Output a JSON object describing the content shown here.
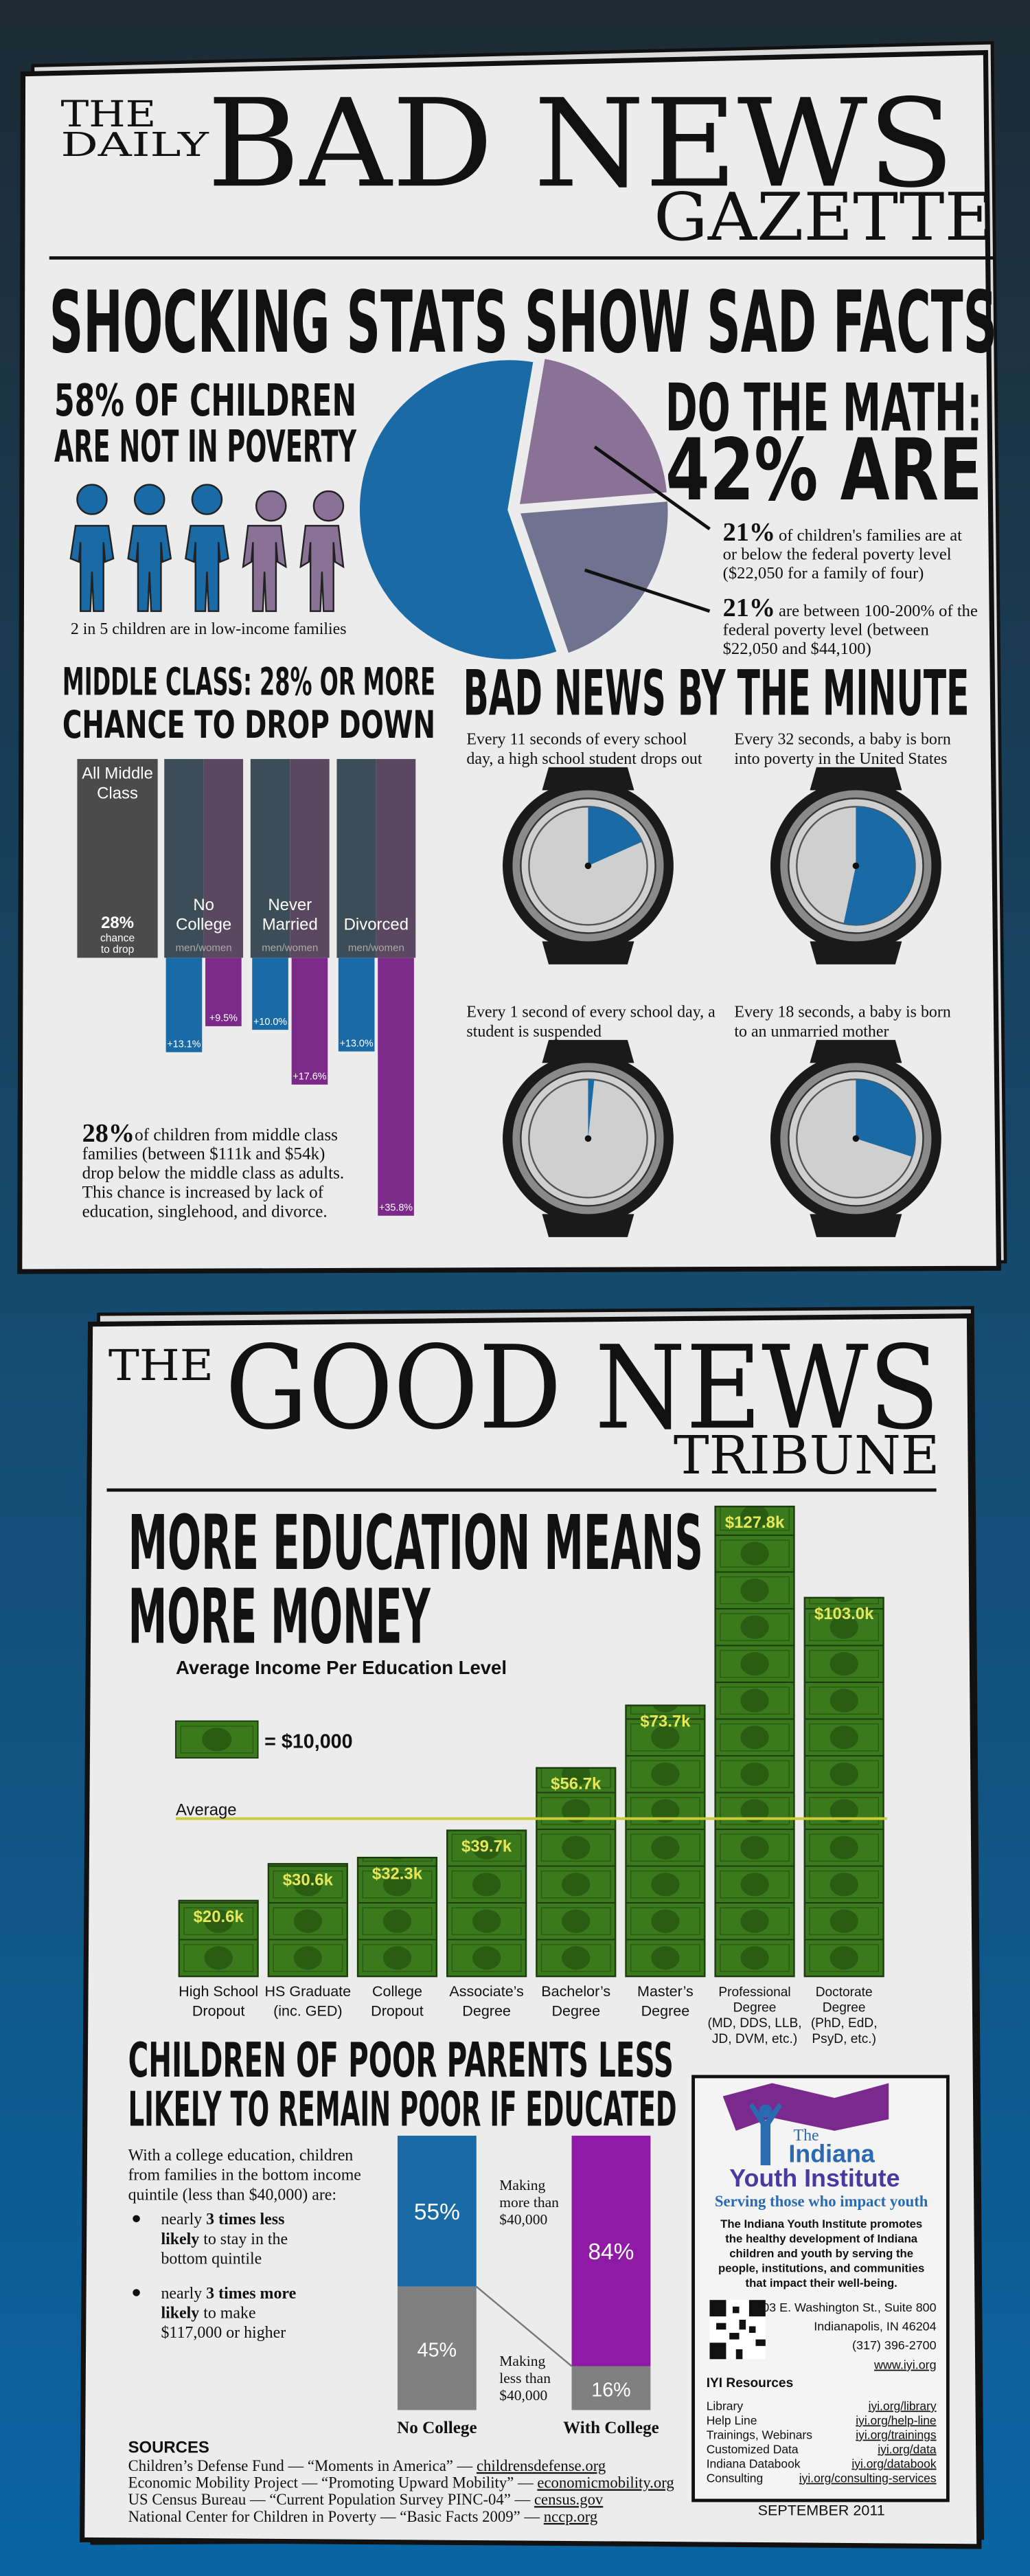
{
  "bad_news": {
    "masthead": {
      "the": "THE",
      "daily": "DAILY",
      "name": "BAD NEWS",
      "sub": "GAZETTE"
    },
    "headline": "SHOCKING STATS SHOW SAD FACTS",
    "not_in_poverty": [
      "58% OF CHILDREN",
      "ARE NOT IN POVERTY"
    ],
    "people_caption": "2 in 5 children are in low-income families",
    "math": [
      "DO THE MATH:",
      "42% ARE"
    ],
    "pie_notes": [
      {
        "lines": [
          "of children's families are at",
          "or below the federal poverty level",
          "($22,050 for a family of four)"
        ]
      },
      {
        "lines": [
          "are between 100-200% of the",
          "federal poverty level (between",
          "$22,050 and $44,100)"
        ]
      }
    ],
    "middle_class_title": [
      "MIDDLE CLASS: 28% OR MORE",
      "CHANCE TO DROP DOWN"
    ],
    "middle_class_note": {
      "lead": "28%",
      "lines": [
        "of children from middle class",
        "families (between $111k and $54k)",
        "drop below the middle class as adults.",
        "This chance is increased by lack of",
        "education, singlehood, and divorce."
      ]
    },
    "minute_title": "BAD NEWS BY THE MINUTE",
    "minute_clocks": [
      {
        "caption": "Every 11 seconds of every school\nday, a high school student drops out",
        "seconds": 11
      },
      {
        "caption": "Every 32 seconds, a baby is born\ninto poverty in the United States",
        "seconds": 32
      },
      {
        "caption": "Every 1 second of every school day, a\nstudent is suspended",
        "seconds": 1
      },
      {
        "caption": "Every 18 seconds, a baby is born\nto an unmarried mother",
        "seconds": 18
      }
    ]
  },
  "good_news": {
    "masthead": {
      "the": "THE",
      "name": "GOOD NEWS",
      "sub": "TRIBUNE"
    },
    "headline": [
      "MORE EDUCATION MEANS",
      "MORE MONEY"
    ],
    "poor_parents_title": [
      "CHILDREN OF POOR PARENTS LESS",
      "LIKELY TO REMAIN POOR IF EDUCATED"
    ],
    "intro": "With a college education, children\nfrom families in the bottom income\nquintile (less than $40,000) are:",
    "bullets": [
      {
        "lines": [
          [
            {
              "text": "nearly "
            },
            {
              "text": "3 times less",
              "bold": true
            }
          ],
          [
            {
              "text": "likely",
              "bold": true
            },
            {
              "text": " to stay in the"
            }
          ],
          [
            {
              "text": "bottom quintile"
            }
          ]
        ]
      },
      {
        "lines": [
          [
            {
              "text": "nearly "
            },
            {
              "text": "3 times more",
              "bold": true
            }
          ],
          [
            {
              "text": "likely",
              "bold": true
            },
            {
              "text": " to make"
            }
          ],
          [
            {
              "text": "$117,000 or higher"
            }
          ]
        ]
      }
    ],
    "sources": {
      "title": "SOURCES",
      "items": [
        {
          "text": "Children’s Defense Fund — “Moments in America” — ",
          "link": "childrensdefense.org"
        },
        {
          "text": "Economic Mobility Project — “Promoting Upward Mobility” — ",
          "link": "economicmobility.org"
        },
        {
          "text": "US Census Bureau — “Current Population Survey PINC-04” — ",
          "link": "census.gov"
        },
        {
          "text": "National Center for Children in Poverty — “Basic Facts 2009” — ",
          "link": "nccp.org"
        }
      ]
    },
    "iyi": {
      "logo": {
        "the": "The",
        "name1": "Indiana",
        "name2": "Youth Institute"
      },
      "tagline": "Serving those who impact youth",
      "description": "The Indiana Youth Institute promotes\nthe healthy development of Indiana\nchildren and youth by serving the\npeople, institutions, and communities\nthat impact their well-being.",
      "address": [
        "603 E. Washington St., Suite 800",
        "Indianapolis, IN 46204",
        "(317) 396-2700"
      ],
      "website": "www.iyi.org",
      "resources_title": "IYI Resources",
      "resources": [
        {
          "name": "Library",
          "link": "iyi.org/library"
        },
        {
          "name": "Help Line",
          "link": "iyi.org/help-line"
        },
        {
          "name": "Trainings, Webinars",
          "link": "iyi.org/trainings"
        },
        {
          "name": "Customized Data",
          "link": "iyi.org/data"
        },
        {
          "name": "Indiana Databook",
          "link": "iyi.org/databook"
        },
        {
          "name": "Consulting",
          "link": "iyi.org/consulting-services"
        }
      ]
    },
    "date": "SEPTEMBER  2011"
  },
  "chart_data": [
    {
      "type": "pie",
      "values": [
        58,
        21,
        21
      ],
      "value_labels": [
        null,
        "21%",
        "21%"
      ],
      "colors": [
        "#1a6aa6",
        "#8a7296",
        "#6f7390"
      ]
    },
    {
      "type": "bar",
      "orientation": "down",
      "categories": [
        "No\nCollege",
        "Never\nMarried",
        "Divorced"
      ],
      "group_label": "men/women",
      "overall": {
        "label": "All Middle\nClass",
        "stat": "28%",
        "caption": "chance\nto drop"
      },
      "series": [
        {
          "color": "#1a6aa6",
          "values": [
            13.1,
            10.0,
            13.0
          ],
          "value_labels": [
            "+13.1%",
            "+10.0%",
            "+13.0%"
          ]
        },
        {
          "color": "#7b2a8a",
          "values": [
            9.5,
            17.6,
            35.8
          ],
          "value_labels": [
            "+9.5%",
            "+17.6%",
            "+35.8%"
          ]
        }
      ]
    },
    {
      "type": "bar",
      "subtitle": "Average Income Per Education Level",
      "categories": [
        "High School\nDropout",
        "HS Graduate\n(inc. GED)",
        "College\nDropout",
        "Associate’s\nDegree",
        "Bachelor’s\nDegree",
        "Master’s\nDegree",
        "Professional\nDegree\n(MD, DDS, LLB,\nJD, DVM, etc.)",
        "Doctorate\nDegree\n(PhD, EdD,\nPsyD, etc.)"
      ],
      "values": [
        20.6,
        30.6,
        32.3,
        39.7,
        56.7,
        73.7,
        127.8,
        103.0
      ],
      "value_labels": [
        "$20.6k",
        "$30.6k",
        "$32.3k",
        "$39.7k",
        "$56.7k",
        "$73.7k",
        "$127.8k",
        "$103.0k"
      ],
      "color": "#3a7a1c",
      "unit_legend": {
        "label": "= $10,000",
        "value": 10
      },
      "average": {
        "label": "Average",
        "value": 42.9,
        "color": "#cdcd3a"
      }
    },
    {
      "type": "stacked_bar",
      "categories": [
        "No College",
        "With College"
      ],
      "series": [
        {
          "name": "Making\nmore than\n$40,000",
          "colors": [
            "#1a6aa6",
            "#8e1aa6"
          ],
          "values": [
            55,
            84
          ],
          "value_labels": [
            "55%",
            "84%"
          ]
        },
        {
          "name": "Making\nless than\n$40,000",
          "color": "#808080",
          "values": [
            45,
            16
          ],
          "value_labels": [
            "45%",
            "16%"
          ]
        }
      ]
    }
  ]
}
